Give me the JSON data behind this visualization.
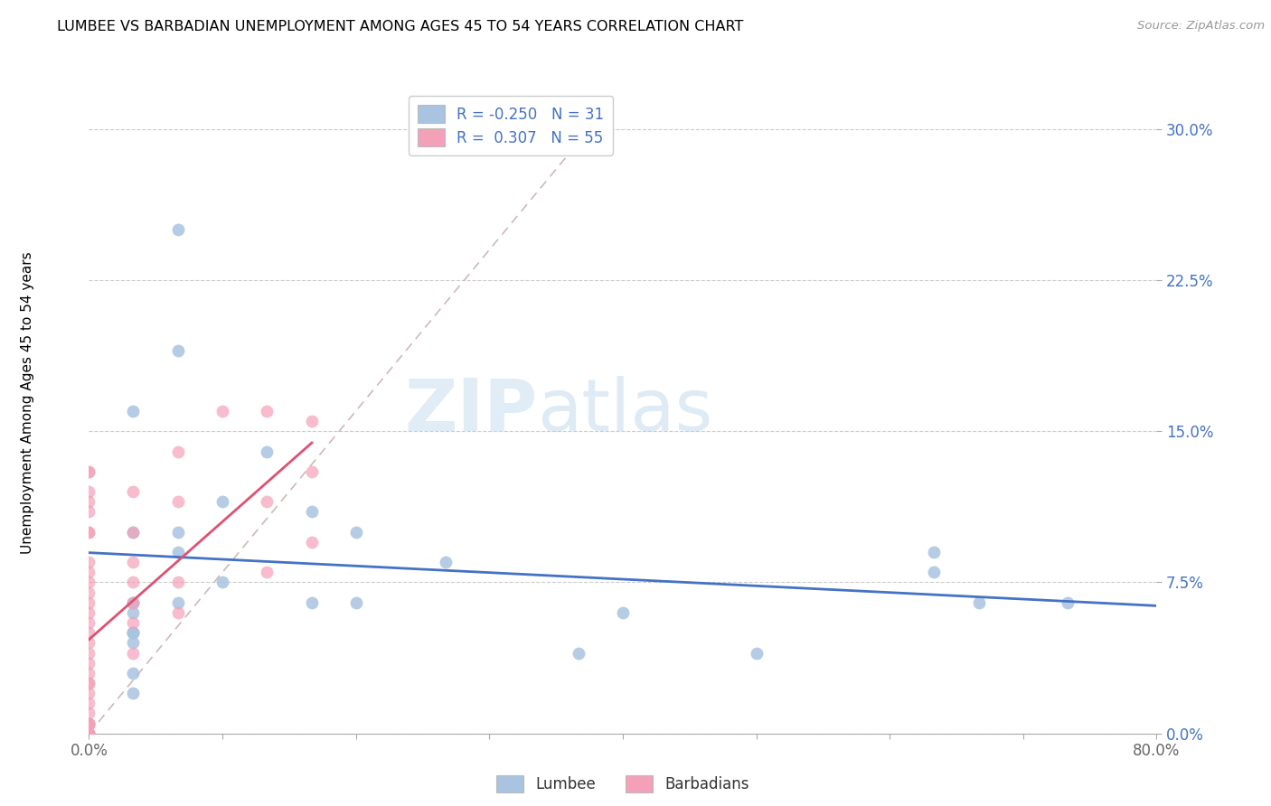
{
  "title": "LUMBEE VS BARBADIAN UNEMPLOYMENT AMONG AGES 45 TO 54 YEARS CORRELATION CHART",
  "source": "Source: ZipAtlas.com",
  "ylabel": "Unemployment Among Ages 45 to 54 years",
  "lumbee_R": -0.25,
  "lumbee_N": 31,
  "barbadian_R": 0.307,
  "barbadian_N": 55,
  "xlim": [
    0.0,
    0.8
  ],
  "ylim": [
    0.0,
    0.32
  ],
  "xticks": [
    0.0,
    0.1,
    0.2,
    0.3,
    0.4,
    0.5,
    0.6,
    0.7,
    0.8
  ],
  "ytick_labels_right": [
    "0.0%",
    "7.5%",
    "15.0%",
    "22.5%",
    "30.0%"
  ],
  "yticks_right": [
    0.0,
    0.075,
    0.15,
    0.225,
    0.3
  ],
  "lumbee_color": "#a8c4e0",
  "barbadian_color": "#f4a0b8",
  "lumbee_line_color": "#4472c4",
  "barbadian_line_color": "#e05070",
  "diagonal_color": "#d0b8b8",
  "watermark_zip": "ZIP",
  "watermark_atlas": "atlas",
  "lumbee_x": [
    0.067,
    0.067,
    0.033,
    0.133,
    0.067,
    0.033,
    0.033,
    0.033,
    0.067,
    0.1,
    0.2,
    0.033,
    0.1,
    0.167,
    0.4,
    0.5,
    0.633,
    0.667,
    0.633,
    0.733,
    0.033,
    0.2,
    0.167,
    0.033,
    0.033,
    0.033,
    0.267,
    0.033,
    0.367,
    0.067,
    0.033
  ],
  "lumbee_y": [
    0.25,
    0.19,
    0.16,
    0.14,
    0.09,
    0.065,
    0.065,
    0.06,
    0.1,
    0.115,
    0.1,
    0.05,
    0.075,
    0.065,
    0.06,
    0.04,
    0.08,
    0.065,
    0.09,
    0.065,
    0.045,
    0.065,
    0.11,
    0.05,
    0.05,
    0.03,
    0.085,
    0.02,
    0.04,
    0.065,
    0.1
  ],
  "barbadian_x": [
    0.0,
    0.0,
    0.0,
    0.0,
    0.0,
    0.0,
    0.0,
    0.0,
    0.0,
    0.0,
    0.0,
    0.0,
    0.0,
    0.0,
    0.0,
    0.0,
    0.0,
    0.0,
    0.0,
    0.0,
    0.0,
    0.0,
    0.0,
    0.0,
    0.0,
    0.0,
    0.0,
    0.0,
    0.0,
    0.0,
    0.0,
    0.0,
    0.0,
    0.0,
    0.0,
    0.0,
    0.033,
    0.033,
    0.033,
    0.033,
    0.033,
    0.033,
    0.033,
    0.067,
    0.067,
    0.067,
    0.067,
    0.1,
    0.133,
    0.133,
    0.133,
    0.167,
    0.167,
    0.167,
    0.0
  ],
  "barbadian_y": [
    0.13,
    0.12,
    0.115,
    0.11,
    0.1,
    0.1,
    0.085,
    0.08,
    0.075,
    0.07,
    0.065,
    0.06,
    0.055,
    0.05,
    0.045,
    0.04,
    0.035,
    0.03,
    0.025,
    0.025,
    0.02,
    0.015,
    0.01,
    0.005,
    0.005,
    0.005,
    0.005,
    0.005,
    0.0,
    0.0,
    0.0,
    0.0,
    0.0,
    0.0,
    0.0,
    0.0,
    0.12,
    0.1,
    0.085,
    0.075,
    0.065,
    0.055,
    0.04,
    0.14,
    0.115,
    0.075,
    0.06,
    0.16,
    0.16,
    0.115,
    0.08,
    0.155,
    0.13,
    0.095,
    0.13
  ]
}
